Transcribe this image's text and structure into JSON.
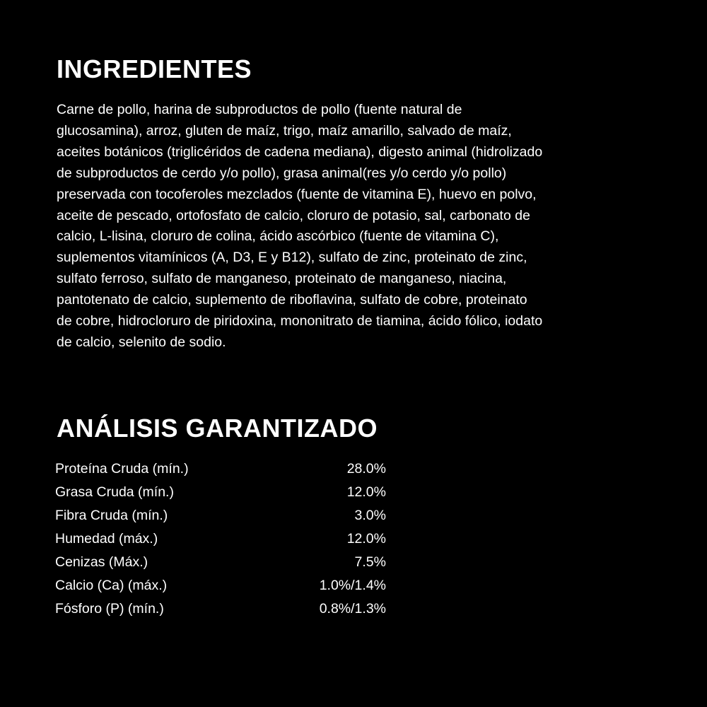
{
  "ingredients": {
    "title": "INGREDIENTES",
    "lines": [
      "Carne de pollo, harina de subproductos de pollo (fuente natural de",
      "glucosamina), arroz, gluten de maíz, trigo, maíz amarillo, salvado de maíz,",
      "aceites botánicos (triglicéridos de cadena mediana), digesto animal (hidrolizado",
      "de subproductos de cerdo y/o pollo), grasa animal(res y/o cerdo y/o pollo)",
      "preservada con tocoferoles mezclados (fuente de vitamina E), huevo en polvo,",
      "aceite de pescado, ortofosfato de calcio, cloruro de potasio, sal, carbonato de",
      "calcio, L-lisina, cloruro de colina, ácido ascórbico (fuente de vitamina C),",
      "suplementos vitamínicos (A, D3, E y B12), sulfato de zinc, proteinato de zinc,",
      "sulfato ferroso, sulfato de manganeso, proteinato de manganeso, niacina,",
      "pantotenato de calcio, suplemento de riboflavina, sulfato de cobre, proteinato",
      "de cobre, hidrocloruro de piridoxina, mononitrato de tiamina, ácido fólico, iodato",
      "de calcio, selenito de sodio."
    ]
  },
  "analysis": {
    "title": "ANÁLISIS GARANTIZADO",
    "rows": [
      {
        "label": "Proteína Cruda (mín.)",
        "value": "28.0%"
      },
      {
        "label": "Grasa Cruda (mín.)",
        "value": "12.0%"
      },
      {
        "label": "Fibra Cruda (mín.)",
        "value": "3.0%"
      },
      {
        "label": "Humedad (máx.)",
        "value": "12.0%"
      },
      {
        "label": "Cenizas (Máx.)",
        "value": "7.5%"
      },
      {
        "label": "Calcio (Ca) (máx.)",
        "value": "1.0%/1.4%"
      },
      {
        "label": "Fósforo (P) (mín.)",
        "value": "0.8%/1.3%"
      }
    ]
  }
}
